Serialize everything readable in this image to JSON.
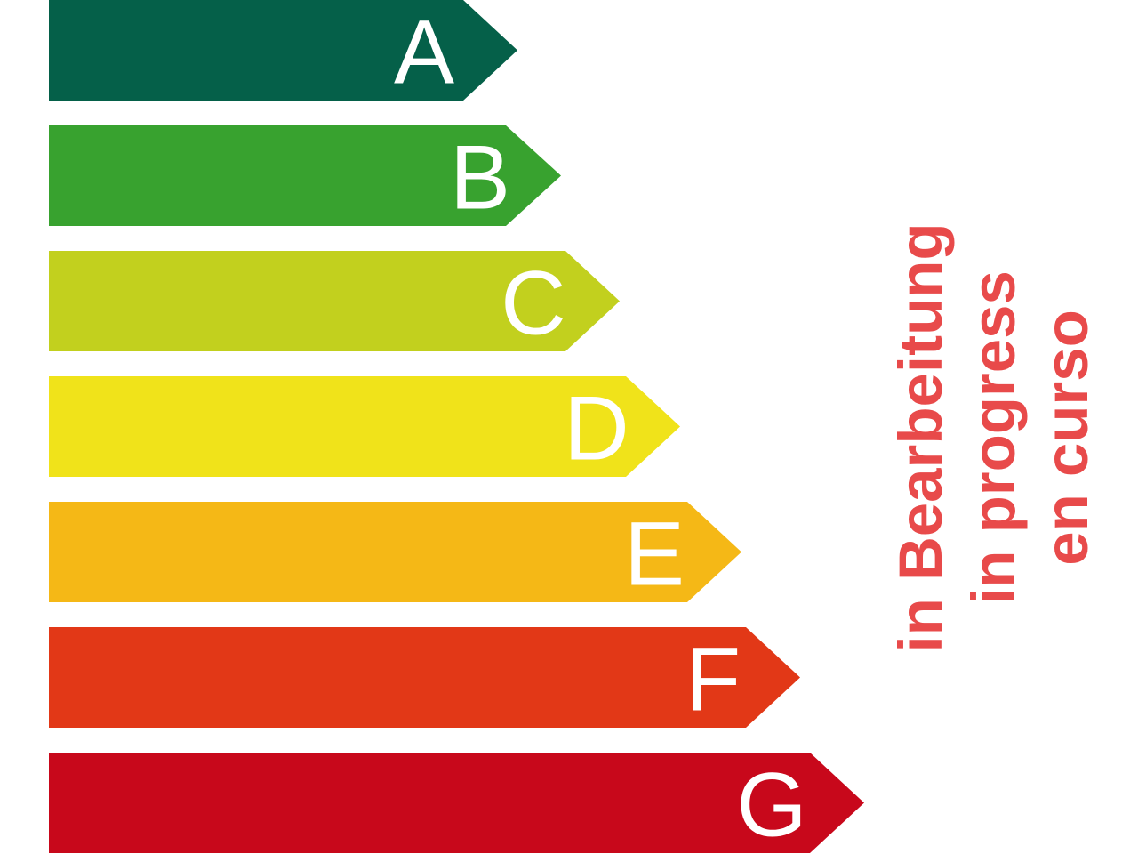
{
  "classes": [
    {
      "label": "A",
      "color": "#056049"
    },
    {
      "label": "B",
      "color": "#38a22f"
    },
    {
      "label": "C",
      "color": "#c2d01e"
    },
    {
      "label": "D",
      "color": "#f0e31a"
    },
    {
      "label": "E",
      "color": "#f5b816"
    },
    {
      "label": "F",
      "color": "#e23817"
    },
    {
      "label": "G",
      "color": "#c8081b"
    }
  ],
  "status": {
    "lines": [
      "in Bearbeitung",
      "in progress",
      "en curso"
    ],
    "color": "#e84a4a"
  }
}
